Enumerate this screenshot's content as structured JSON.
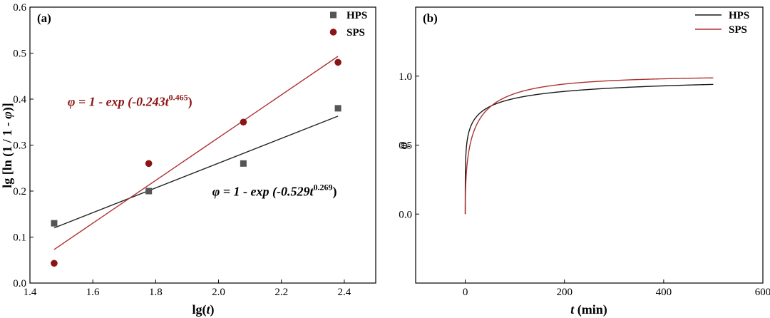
{
  "chart_data": [
    {
      "type": "scatter",
      "panel": "(a)",
      "xlabel": "lg(t)",
      "ylabel": "lg [ln (1 / 1 - φ)]",
      "xlim": [
        1.4,
        2.5
      ],
      "ylim": [
        0.0,
        0.6
      ],
      "x_ticks": [
        "1.4",
        "1.6",
        "1.8",
        "2.0",
        "2.2",
        "2.4"
      ],
      "y_ticks": [
        "0.0",
        "0.1",
        "0.2",
        "0.3",
        "0.4",
        "0.5",
        "0.6"
      ],
      "legend_position": "top-right",
      "series": [
        {
          "name": "HPS",
          "color": "#555555",
          "marker": "square",
          "points": [
            [
              1.477,
              0.13
            ],
            [
              1.778,
              0.2
            ],
            [
              2.079,
              0.26
            ],
            [
              2.38,
              0.38
            ]
          ],
          "fit": {
            "x": [
              1.477,
              2.38
            ],
            "y": [
              0.12,
              0.363
            ],
            "color": "#222222"
          }
        },
        {
          "name": "SPS",
          "color": "#8b1414",
          "marker": "circle",
          "points": [
            [
              1.477,
              0.043
            ],
            [
              1.778,
              0.26
            ],
            [
              2.079,
              0.35
            ],
            [
              2.38,
              0.48
            ]
          ],
          "fit": {
            "x": [
              1.477,
              2.38
            ],
            "y": [
              0.073,
              0.493
            ],
            "color": "#b03030"
          }
        }
      ],
      "annotations": [
        {
          "text": "φ = 1 - exp (-0.243t",
          "sup": "0.465",
          "tail": ")",
          "color": "#8b1414",
          "x": 1.52,
          "y": 0.385
        },
        {
          "text": "φ = 1 - exp (-0.529t",
          "sup": "0.269",
          "tail": ")",
          "color": "#000000",
          "x": 1.98,
          "y": 0.19
        }
      ]
    },
    {
      "type": "line",
      "panel": "(b)",
      "xlabel": "t (min)",
      "ylabel": "φ",
      "xlim": [
        -100,
        600
      ],
      "ylim": [
        -0.5,
        1.5
      ],
      "x_ticks": [
        "0",
        "200",
        "400",
        "600"
      ],
      "y_ticks": [
        "0.0",
        "0.5",
        "1.0"
      ],
      "legend_position": "top-right",
      "series": [
        {
          "name": "HPS",
          "color": "#1a1a1a",
          "k": 0.529,
          "n": 0.269,
          "t_range": [
            0,
            500
          ]
        },
        {
          "name": "SPS",
          "color": "#b03030",
          "k": 0.243,
          "n": 0.465,
          "t_range": [
            0,
            500
          ]
        }
      ]
    }
  ]
}
